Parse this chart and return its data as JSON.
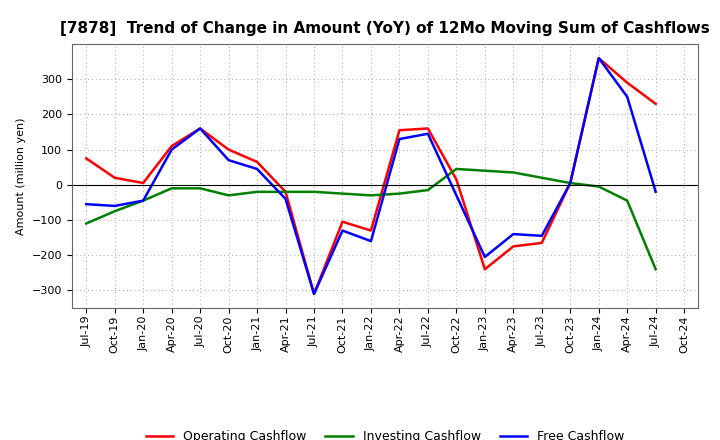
{
  "title": "[7878]  Trend of Change in Amount (YoY) of 12Mo Moving Sum of Cashflows",
  "ylabel": "Amount (million yen)",
  "ylim": [
    -350,
    400
  ],
  "yticks": [
    -300,
    -200,
    -100,
    0,
    100,
    200,
    300
  ],
  "x_labels": [
    "Jul-19",
    "Oct-19",
    "Jan-20",
    "Apr-20",
    "Jul-20",
    "Oct-20",
    "Jan-21",
    "Apr-21",
    "Jul-21",
    "Oct-21",
    "Jan-22",
    "Apr-22",
    "Jul-22",
    "Oct-22",
    "Jan-23",
    "Apr-23",
    "Jul-23",
    "Oct-23",
    "Jan-24",
    "Apr-24",
    "Jul-24",
    "Oct-24"
  ],
  "operating": [
    75,
    20,
    5,
    110,
    160,
    100,
    65,
    -20,
    -310,
    -105,
    -130,
    155,
    160,
    15,
    -240,
    -175,
    -165,
    5,
    360,
    290,
    230,
    null
  ],
  "investing": [
    -110,
    -75,
    -45,
    -10,
    -10,
    -30,
    -20,
    -20,
    -20,
    -25,
    -30,
    -25,
    -15,
    45,
    40,
    35,
    20,
    5,
    -5,
    -45,
    -240,
    null
  ],
  "free": [
    -55,
    -60,
    -45,
    100,
    160,
    70,
    45,
    -40,
    -310,
    -130,
    -160,
    130,
    145,
    -30,
    -205,
    -140,
    -145,
    5,
    360,
    250,
    -20,
    null
  ],
  "operating_color": "#FF0000",
  "investing_color": "#008000",
  "free_color": "#0000FF",
  "background_color": "#FFFFFF",
  "grid_color": "#AAAAAA",
  "title_fontsize": 11,
  "legend_fontsize": 9,
  "axis_fontsize": 8
}
